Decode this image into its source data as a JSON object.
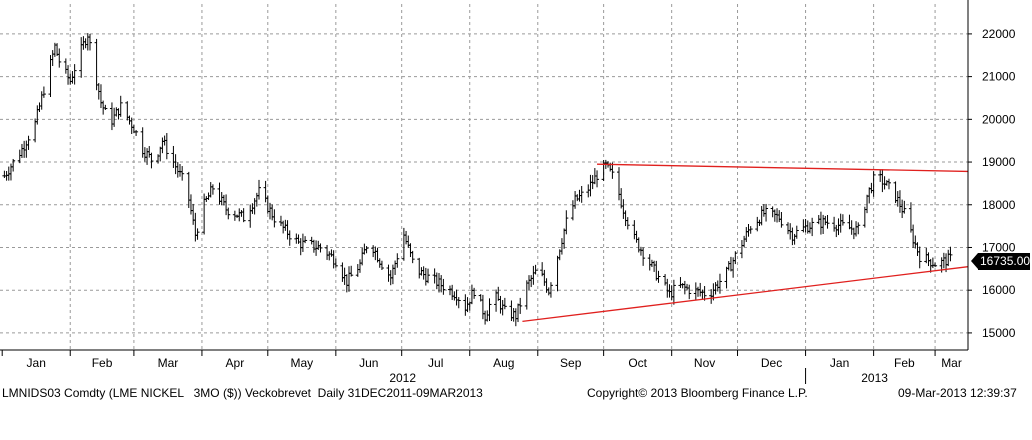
{
  "chart_data": {
    "type": "ohlc",
    "y_ticks": [
      15000,
      16000,
      17000,
      18000,
      19000,
      20000,
      21000,
      22000
    ],
    "y_tick_labels": [
      "15000",
      "16000",
      "17000",
      "18000",
      "19000",
      "20000",
      "21000",
      "22000"
    ],
    "ylim": [
      14600,
      22700
    ],
    "month_labels": [
      "Jan",
      "Feb",
      "Mar",
      "Apr",
      "May",
      "Jun",
      "Jul",
      "Aug",
      "Sep",
      "Oct",
      "Nov",
      "Dec",
      "Jan",
      "Feb",
      "Mar"
    ],
    "month_start_dates": [
      "2012-01-01",
      "2012-02-01",
      "2012-03-01",
      "2012-04-01",
      "2012-05-01",
      "2012-06-01",
      "2012-07-01",
      "2012-08-01",
      "2012-09-01",
      "2012-10-01",
      "2012-11-01",
      "2012-12-01",
      "2013-01-01",
      "2013-02-01",
      "2013-03-01"
    ],
    "year_labels": [
      {
        "year": "2012",
        "month_index": 6
      },
      {
        "year": "2013",
        "month_index": 13
      }
    ],
    "xlim": [
      "2011-12-31",
      "2013-03-16"
    ],
    "grid": true,
    "last_value_label": "16735.00",
    "price_path": [
      [
        "2012-01-01",
        18600
      ],
      [
        "2012-01-10",
        19300
      ],
      [
        "2012-01-16",
        19900
      ],
      [
        "2012-01-21",
        20900
      ],
      [
        "2012-01-25",
        21700
      ],
      [
        "2012-01-28",
        21200
      ],
      [
        "2012-02-01",
        20900
      ],
      [
        "2012-02-05",
        21500
      ],
      [
        "2012-02-09",
        22000
      ],
      [
        "2012-02-12",
        21200
      ],
      [
        "2012-02-15",
        20400
      ],
      [
        "2012-02-19",
        19900
      ],
      [
        "2012-02-24",
        20300
      ],
      [
        "2012-03-01",
        19800
      ],
      [
        "2012-03-05",
        19300
      ],
      [
        "2012-03-10",
        19000
      ],
      [
        "2012-03-14",
        19500
      ],
      [
        "2012-03-20",
        18900
      ],
      [
        "2012-03-25",
        18400
      ],
      [
        "2012-03-29",
        17300
      ],
      [
        "2012-04-02",
        18000
      ],
      [
        "2012-04-06",
        18400
      ],
      [
        "2012-04-12",
        17900
      ],
      [
        "2012-04-20",
        17700
      ],
      [
        "2012-04-27",
        18300
      ],
      [
        "2012-05-05",
        17600
      ],
      [
        "2012-05-15",
        17100
      ],
      [
        "2012-05-25",
        17000
      ],
      [
        "2012-06-01",
        16700
      ],
      [
        "2012-06-06",
        16200
      ],
      [
        "2012-06-12",
        16600
      ],
      [
        "2012-06-16",
        17200
      ],
      [
        "2012-06-21",
        16700
      ],
      [
        "2012-06-26",
        16300
      ],
      [
        "2012-07-02",
        17300
      ],
      [
        "2012-07-07",
        16500
      ],
      [
        "2012-07-13",
        16300
      ],
      [
        "2012-07-20",
        16100
      ],
      [
        "2012-07-26",
        15900
      ],
      [
        "2012-07-30",
        15600
      ],
      [
        "2012-08-03",
        16000
      ],
      [
        "2012-08-08",
        15400
      ],
      [
        "2012-08-12",
        15900
      ],
      [
        "2012-08-17",
        15500
      ],
      [
        "2012-08-22",
        15400
      ],
      [
        "2012-08-27",
        16100
      ],
      [
        "2012-09-01",
        16500
      ],
      [
        "2012-09-06",
        16000
      ],
      [
        "2012-09-10",
        16800
      ],
      [
        "2012-09-14",
        17600
      ],
      [
        "2012-09-18",
        18100
      ],
      [
        "2012-09-23",
        18300
      ],
      [
        "2012-09-28",
        18700
      ],
      [
        "2012-10-02",
        18900
      ],
      [
        "2012-10-06",
        18600
      ],
      [
        "2012-10-10",
        17900
      ],
      [
        "2012-10-15",
        17200
      ],
      [
        "2012-10-20",
        16800
      ],
      [
        "2012-10-26",
        16300
      ],
      [
        "2012-10-31",
        15900
      ],
      [
        "2012-11-04",
        16100
      ],
      [
        "2012-11-10",
        16000
      ],
      [
        "2012-11-18",
        15900
      ],
      [
        "2012-11-26",
        16400
      ],
      [
        "2012-12-01",
        16900
      ],
      [
        "2012-12-07",
        17500
      ],
      [
        "2012-12-13",
        17800
      ],
      [
        "2012-12-20",
        17700
      ],
      [
        "2012-12-26",
        17300
      ],
      [
        "2013-01-02",
        17500
      ],
      [
        "2013-01-10",
        17600
      ],
      [
        "2013-01-18",
        17500
      ],
      [
        "2013-01-25",
        17400
      ],
      [
        "2013-01-29",
        18200
      ],
      [
        "2013-02-02",
        18700
      ],
      [
        "2013-02-06",
        18500
      ],
      [
        "2013-02-10",
        18300
      ],
      [
        "2013-02-15",
        17800
      ],
      [
        "2013-02-19",
        17200
      ],
      [
        "2013-02-22",
        16800
      ],
      [
        "2013-02-26",
        16700
      ],
      [
        "2013-03-02",
        16600
      ],
      [
        "2013-03-06",
        16700
      ],
      [
        "2013-03-08",
        16735
      ]
    ],
    "trendlines": [
      {
        "name": "upper",
        "color": "#e0201e",
        "from": [
          "2012-09-28",
          18950
        ],
        "to": [
          "2013-03-16",
          18780
        ]
      },
      {
        "name": "lower",
        "color": "#e0201e",
        "from": [
          "2012-08-25",
          15270
        ],
        "to": [
          "2013-03-16",
          16550
        ]
      }
    ]
  },
  "footer": {
    "ticker": "LMNIDS03 Comdty (LME NICKEL   3MO ($)) Veckobrevet  Daily 31DEC2011-09MAR2013",
    "copyright": "Copyright© 2013 Bloomberg Finance L.P.",
    "timestamp": "09-Mar-2013 12:39:37"
  }
}
